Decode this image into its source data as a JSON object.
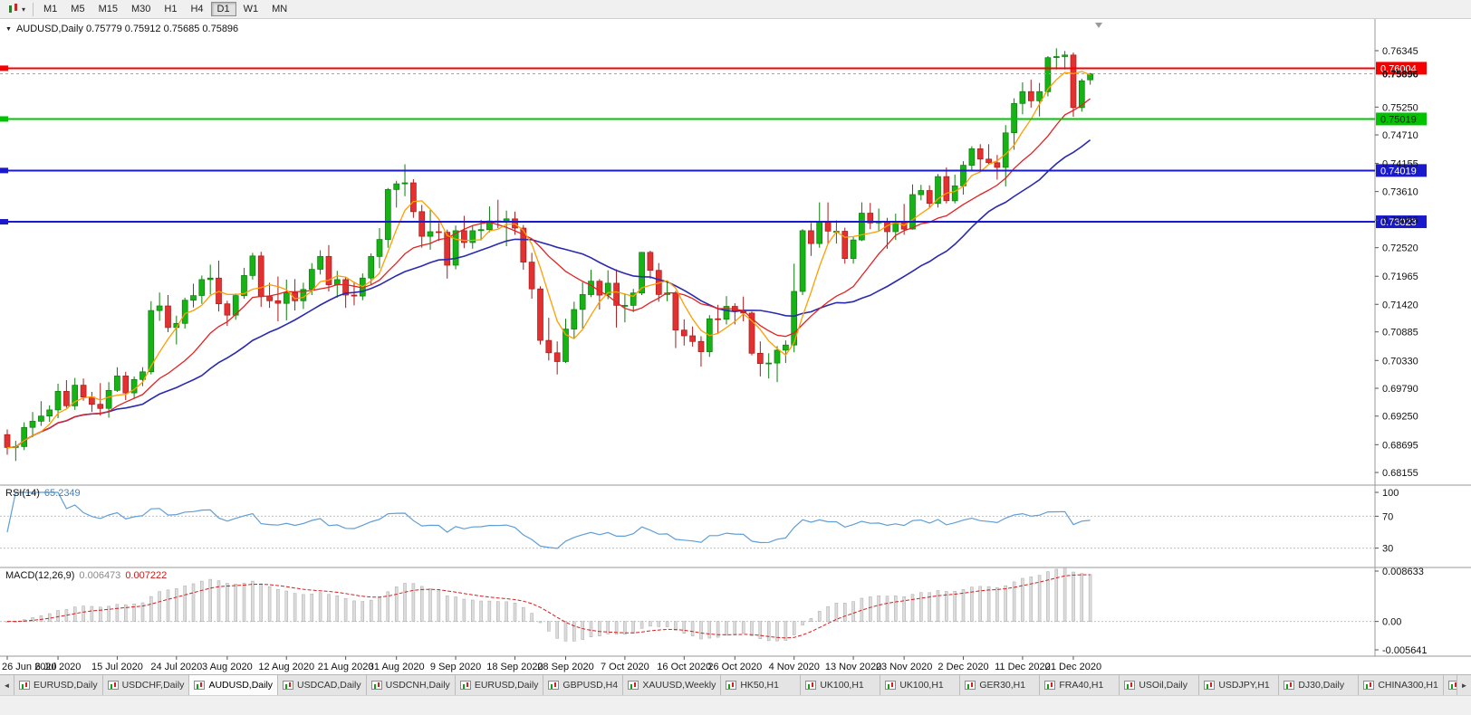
{
  "toolbar": {
    "chart_menu_icon": "candlestick-chart-icon",
    "timeframes": [
      "M1",
      "M5",
      "M15",
      "M30",
      "H1",
      "H4",
      "D1",
      "W1",
      "MN"
    ],
    "active_timeframe": "D1"
  },
  "chart": {
    "header": "AUDUSD,Daily 0.75779 0.75912 0.75685 0.75896",
    "symbol": "AUDUSD",
    "period": "Daily"
  },
  "rsi": {
    "label": "RSI(14)",
    "value": "65.2349",
    "axis_labels": [
      "100",
      "70",
      "30"
    ],
    "levels": [
      70,
      30
    ],
    "line_color": "#5f9ed6"
  },
  "macd": {
    "label": "MACD(12,26,9)",
    "value_main": "0.006473",
    "value_signal": "0.007222",
    "axis_labels": [
      "0.008633",
      "0.00",
      "-0.005641"
    ],
    "scale_max": 0.008633,
    "scale_min": -0.005641,
    "histogram_color": "#dcdcdc",
    "histogram_stroke": "#a8a8a8",
    "signal_color": "#d22020"
  },
  "chart_data": {
    "type": "candlestick",
    "title": "AUDUSD,Daily",
    "current": {
      "open": 0.75779,
      "high": 0.75912,
      "low": 0.75685,
      "close": 0.75896
    },
    "current_price_label": "0.75896",
    "y_range": [
      0.6791,
      0.7696
    ],
    "y_axis_ticks": [
      "0.76345",
      "0.75250",
      "0.74710",
      "0.74155",
      "0.73610",
      "0.73055",
      "0.72520",
      "0.71965",
      "0.71420",
      "0.70885",
      "0.70330",
      "0.69790",
      "0.69250",
      "0.68695",
      "0.68155"
    ],
    "x_labels": [
      {
        "text": "26 Jun 2020",
        "i": 0
      },
      {
        "text": "6 Jul 2020",
        "i": 6
      },
      {
        "text": "15 Jul 2020",
        "i": 13
      },
      {
        "text": "24 Jul 2020",
        "i": 20
      },
      {
        "text": "3 Aug 2020",
        "i": 26
      },
      {
        "text": "12 Aug 2020",
        "i": 33
      },
      {
        "text": "21 Aug 2020",
        "i": 40
      },
      {
        "text": "31 Aug 2020",
        "i": 46
      },
      {
        "text": "9 Sep 2020",
        "i": 53
      },
      {
        "text": "18 Sep 2020",
        "i": 60
      },
      {
        "text": "28 Sep 2020",
        "i": 66
      },
      {
        "text": "7 Oct 2020",
        "i": 73
      },
      {
        "text": "16 Oct 2020",
        "i": 80
      },
      {
        "text": "26 Oct 2020",
        "i": 86
      },
      {
        "text": "4 Nov 2020",
        "i": 93
      },
      {
        "text": "13 Nov 2020",
        "i": 100
      },
      {
        "text": "23 Nov 2020",
        "i": 106
      },
      {
        "text": "2 Dec 2020",
        "i": 113
      },
      {
        "text": "11 Dec 2020",
        "i": 120
      },
      {
        "text": "21 Dec 2020",
        "i": 126
      }
    ],
    "horizontal_lines": [
      {
        "price": 0.76004,
        "label": "0.76004",
        "color": "#f80000",
        "text_color": "#ffffff",
        "width": 2
      },
      {
        "price": 0.75019,
        "label": "0.75019",
        "color": "#00c400",
        "text_color": "#003300",
        "width": 2
      },
      {
        "price": 0.74019,
        "label": "0.74019",
        "color": "#1a1acc",
        "text_color": "#ffffff",
        "width": 2
      },
      {
        "price": 0.73023,
        "label": "0.73023",
        "color": "#1a1acc",
        "text_color": "#ffffff",
        "width": 2
      }
    ],
    "moving_averages": [
      {
        "name": "ma-slow",
        "period": 24,
        "color": "#2a2ab0",
        "width": 1.6
      },
      {
        "name": "ma-mid",
        "period": 13,
        "color": "#e32222",
        "width": 1.3
      },
      {
        "name": "ma-fast",
        "period": 5,
        "color": "#ff9e00",
        "width": 1.3
      }
    ],
    "bull_color": "#16b216",
    "bull_stroke": "#0b7d0b",
    "bear_color": "#e33030",
    "bear_stroke": "#a81a1a",
    "candles": [
      [
        0.6889,
        0.6899,
        0.685,
        0.6864
      ],
      [
        0.6864,
        0.6877,
        0.6838,
        0.6866
      ],
      [
        0.6866,
        0.6913,
        0.6859,
        0.6903
      ],
      [
        0.6903,
        0.6933,
        0.6884,
        0.6915
      ],
      [
        0.6915,
        0.6954,
        0.6906,
        0.6925
      ],
      [
        0.6925,
        0.6946,
        0.6914,
        0.6937
      ],
      [
        0.6937,
        0.6988,
        0.6921,
        0.6973
      ],
      [
        0.6973,
        0.6995,
        0.6941,
        0.6945
      ],
      [
        0.6945,
        0.6999,
        0.6937,
        0.6985
      ],
      [
        0.6985,
        0.6998,
        0.6955,
        0.6962
      ],
      [
        0.6962,
        0.6972,
        0.6933,
        0.6948
      ],
      [
        0.6948,
        0.6989,
        0.6926,
        0.694
      ],
      [
        0.694,
        0.6991,
        0.6922,
        0.6975
      ],
      [
        0.6975,
        0.702,
        0.6972,
        0.7003
      ],
      [
        0.7003,
        0.7011,
        0.6956,
        0.697
      ],
      [
        0.697,
        0.7002,
        0.696,
        0.6996
      ],
      [
        0.6996,
        0.702,
        0.6983,
        0.7011
      ],
      [
        0.7011,
        0.7148,
        0.7006,
        0.713
      ],
      [
        0.713,
        0.7165,
        0.711,
        0.7139
      ],
      [
        0.7139,
        0.716,
        0.7088,
        0.7097
      ],
      [
        0.7097,
        0.712,
        0.7064,
        0.7105
      ],
      [
        0.7105,
        0.7155,
        0.7095,
        0.715
      ],
      [
        0.715,
        0.7182,
        0.7136,
        0.7159
      ],
      [
        0.7159,
        0.7198,
        0.7143,
        0.719
      ],
      [
        0.719,
        0.7219,
        0.7161,
        0.7193
      ],
      [
        0.7193,
        0.7227,
        0.7128,
        0.7143
      ],
      [
        0.7143,
        0.7149,
        0.71,
        0.7121
      ],
      [
        0.7121,
        0.7163,
        0.7112,
        0.7159
      ],
      [
        0.7159,
        0.7213,
        0.7153,
        0.7198
      ],
      [
        0.7198,
        0.7242,
        0.719,
        0.7236
      ],
      [
        0.7236,
        0.7244,
        0.7137,
        0.7157
      ],
      [
        0.7157,
        0.7184,
        0.7135,
        0.7149
      ],
      [
        0.7149,
        0.7196,
        0.7109,
        0.7144
      ],
      [
        0.7144,
        0.719,
        0.7111,
        0.7165
      ],
      [
        0.7165,
        0.7191,
        0.713,
        0.7149
      ],
      [
        0.7149,
        0.7184,
        0.7133,
        0.7171
      ],
      [
        0.7171,
        0.7222,
        0.716,
        0.721
      ],
      [
        0.721,
        0.7247,
        0.72,
        0.7235
      ],
      [
        0.7235,
        0.7257,
        0.7167,
        0.718
      ],
      [
        0.718,
        0.7207,
        0.7155,
        0.719
      ],
      [
        0.719,
        0.7196,
        0.7135,
        0.716
      ],
      [
        0.716,
        0.7186,
        0.714,
        0.7158
      ],
      [
        0.7158,
        0.7202,
        0.715,
        0.7193
      ],
      [
        0.7193,
        0.7241,
        0.7179,
        0.7235
      ],
      [
        0.7235,
        0.729,
        0.7212,
        0.7268
      ],
      [
        0.7268,
        0.7368,
        0.7252,
        0.7365
      ],
      [
        0.7365,
        0.7382,
        0.733,
        0.7376
      ],
      [
        0.7376,
        0.7414,
        0.7352,
        0.7378
      ],
      [
        0.7378,
        0.7385,
        0.731,
        0.7322
      ],
      [
        0.7322,
        0.7335,
        0.7252,
        0.7274
      ],
      [
        0.7274,
        0.7325,
        0.7248,
        0.7283
      ],
      [
        0.7283,
        0.73,
        0.7265,
        0.7282
      ],
      [
        0.7282,
        0.7287,
        0.7192,
        0.7218
      ],
      [
        0.7218,
        0.7295,
        0.721,
        0.7285
      ],
      [
        0.7285,
        0.7314,
        0.7251,
        0.7262
      ],
      [
        0.7262,
        0.7295,
        0.725,
        0.7285
      ],
      [
        0.7285,
        0.7306,
        0.7266,
        0.7287
      ],
      [
        0.7287,
        0.7332,
        0.7282,
        0.7304
      ],
      [
        0.7304,
        0.7345,
        0.729,
        0.7302
      ],
      [
        0.7302,
        0.7324,
        0.7255,
        0.7308
      ],
      [
        0.7308,
        0.7322,
        0.7277,
        0.729
      ],
      [
        0.729,
        0.7296,
        0.7209,
        0.7224
      ],
      [
        0.7224,
        0.7242,
        0.7153,
        0.7172
      ],
      [
        0.7172,
        0.7177,
        0.7064,
        0.7072
      ],
      [
        0.7072,
        0.7116,
        0.7033,
        0.7048
      ],
      [
        0.7048,
        0.707,
        0.7006,
        0.7031
      ],
      [
        0.7031,
        0.7114,
        0.7028,
        0.7094
      ],
      [
        0.7094,
        0.7147,
        0.7075,
        0.7132
      ],
      [
        0.7132,
        0.7185,
        0.7095,
        0.7161
      ],
      [
        0.7161,
        0.7209,
        0.7156,
        0.7187
      ],
      [
        0.7187,
        0.7191,
        0.7132,
        0.716
      ],
      [
        0.716,
        0.7208,
        0.7152,
        0.7183
      ],
      [
        0.7183,
        0.721,
        0.7097,
        0.714
      ],
      [
        0.714,
        0.7163,
        0.7107,
        0.714
      ],
      [
        0.714,
        0.7172,
        0.7127,
        0.7164
      ],
      [
        0.7164,
        0.7243,
        0.716,
        0.7243
      ],
      [
        0.7243,
        0.7246,
        0.7192,
        0.7208
      ],
      [
        0.7208,
        0.7222,
        0.7147,
        0.7161
      ],
      [
        0.7161,
        0.7186,
        0.7148,
        0.7164
      ],
      [
        0.7164,
        0.7168,
        0.7057,
        0.7092
      ],
      [
        0.7092,
        0.7113,
        0.7062,
        0.7081
      ],
      [
        0.7081,
        0.7099,
        0.706,
        0.707
      ],
      [
        0.707,
        0.708,
        0.7021,
        0.705
      ],
      [
        0.705,
        0.7121,
        0.704,
        0.7114
      ],
      [
        0.7114,
        0.7141,
        0.7086,
        0.7113
      ],
      [
        0.7113,
        0.7158,
        0.7103,
        0.7138
      ],
      [
        0.7138,
        0.7144,
        0.7103,
        0.7128
      ],
      [
        0.7128,
        0.7157,
        0.7109,
        0.7125
      ],
      [
        0.7125,
        0.7128,
        0.7043,
        0.7047
      ],
      [
        0.7047,
        0.707,
        0.7002,
        0.7027
      ],
      [
        0.7027,
        0.7047,
        0.6998,
        0.7028
      ],
      [
        0.7028,
        0.7061,
        0.6991,
        0.7053
      ],
      [
        0.7053,
        0.7072,
        0.7028,
        0.7063
      ],
      [
        0.7063,
        0.7221,
        0.7049,
        0.7167
      ],
      [
        0.7167,
        0.7288,
        0.716,
        0.7285
      ],
      [
        0.7285,
        0.73,
        0.7236,
        0.726
      ],
      [
        0.726,
        0.734,
        0.7252,
        0.7302
      ],
      [
        0.7302,
        0.734,
        0.7258,
        0.7284
      ],
      [
        0.7284,
        0.7305,
        0.726,
        0.7284
      ],
      [
        0.7284,
        0.7291,
        0.7221,
        0.7231
      ],
      [
        0.7231,
        0.7274,
        0.7221,
        0.7267
      ],
      [
        0.7267,
        0.734,
        0.7265,
        0.7319
      ],
      [
        0.7319,
        0.7339,
        0.7288,
        0.73
      ],
      [
        0.73,
        0.7328,
        0.7283,
        0.7303
      ],
      [
        0.7303,
        0.731,
        0.725,
        0.7283
      ],
      [
        0.7283,
        0.7318,
        0.7267,
        0.7302
      ],
      [
        0.7302,
        0.7337,
        0.7277,
        0.7288
      ],
      [
        0.7288,
        0.7375,
        0.7287,
        0.7355
      ],
      [
        0.7355,
        0.7374,
        0.7344,
        0.7363
      ],
      [
        0.7363,
        0.7373,
        0.733,
        0.7338
      ],
      [
        0.7338,
        0.7395,
        0.733,
        0.739
      ],
      [
        0.739,
        0.7408,
        0.7338,
        0.7343
      ],
      [
        0.7343,
        0.7394,
        0.7338,
        0.7372
      ],
      [
        0.7372,
        0.742,
        0.7355,
        0.7412
      ],
      [
        0.7412,
        0.7449,
        0.74,
        0.7444
      ],
      [
        0.7444,
        0.7453,
        0.74,
        0.7424
      ],
      [
        0.7424,
        0.7453,
        0.7413,
        0.7417
      ],
      [
        0.7417,
        0.7432,
        0.7384,
        0.7408
      ],
      [
        0.7408,
        0.749,
        0.7371,
        0.7475
      ],
      [
        0.7475,
        0.7542,
        0.7442,
        0.7532
      ],
      [
        0.7532,
        0.7573,
        0.7511,
        0.7555
      ],
      [
        0.7555,
        0.7578,
        0.7524,
        0.7537
      ],
      [
        0.7537,
        0.7572,
        0.7507,
        0.7555
      ],
      [
        0.7555,
        0.7624,
        0.7546,
        0.7621
      ],
      [
        0.7621,
        0.7639,
        0.7598,
        0.7623
      ],
      [
        0.7623,
        0.7634,
        0.7598,
        0.7626
      ],
      [
        0.7626,
        0.7631,
        0.7506,
        0.7524
      ],
      [
        0.7524,
        0.758,
        0.7516,
        0.7576
      ],
      [
        0.75779,
        0.75912,
        0.75685,
        0.75896
      ]
    ]
  },
  "tabs": {
    "scroll_left": "◄",
    "scroll_right": "►",
    "items": [
      {
        "label": "EURUSD,Daily",
        "active": false
      },
      {
        "label": "USDCHF,Daily",
        "active": false
      },
      {
        "label": "AUDUSD,Daily",
        "active": true
      },
      {
        "label": "USDCAD,Daily",
        "active": false
      },
      {
        "label": "USDCNH,Daily",
        "active": false
      },
      {
        "label": "EURUSD,Daily",
        "active": false
      },
      {
        "label": "GBPUSD,H4",
        "active": false
      },
      {
        "label": "XAUUSD,Weekly",
        "active": false
      },
      {
        "label": "HK50,H1",
        "active": false
      },
      {
        "label": "UK100,H1",
        "active": false
      },
      {
        "label": "UK100,H1",
        "active": false
      },
      {
        "label": "GER30,H1",
        "active": false
      },
      {
        "label": "FRA40,H1",
        "active": false
      },
      {
        "label": "USOil,Daily",
        "active": false
      },
      {
        "label": "USDJPY,H1",
        "active": false
      },
      {
        "label": "DJ30,Daily",
        "active": false
      },
      {
        "label": "CHINA300,H1",
        "active": false
      },
      {
        "label": "U",
        "active": false
      }
    ]
  }
}
